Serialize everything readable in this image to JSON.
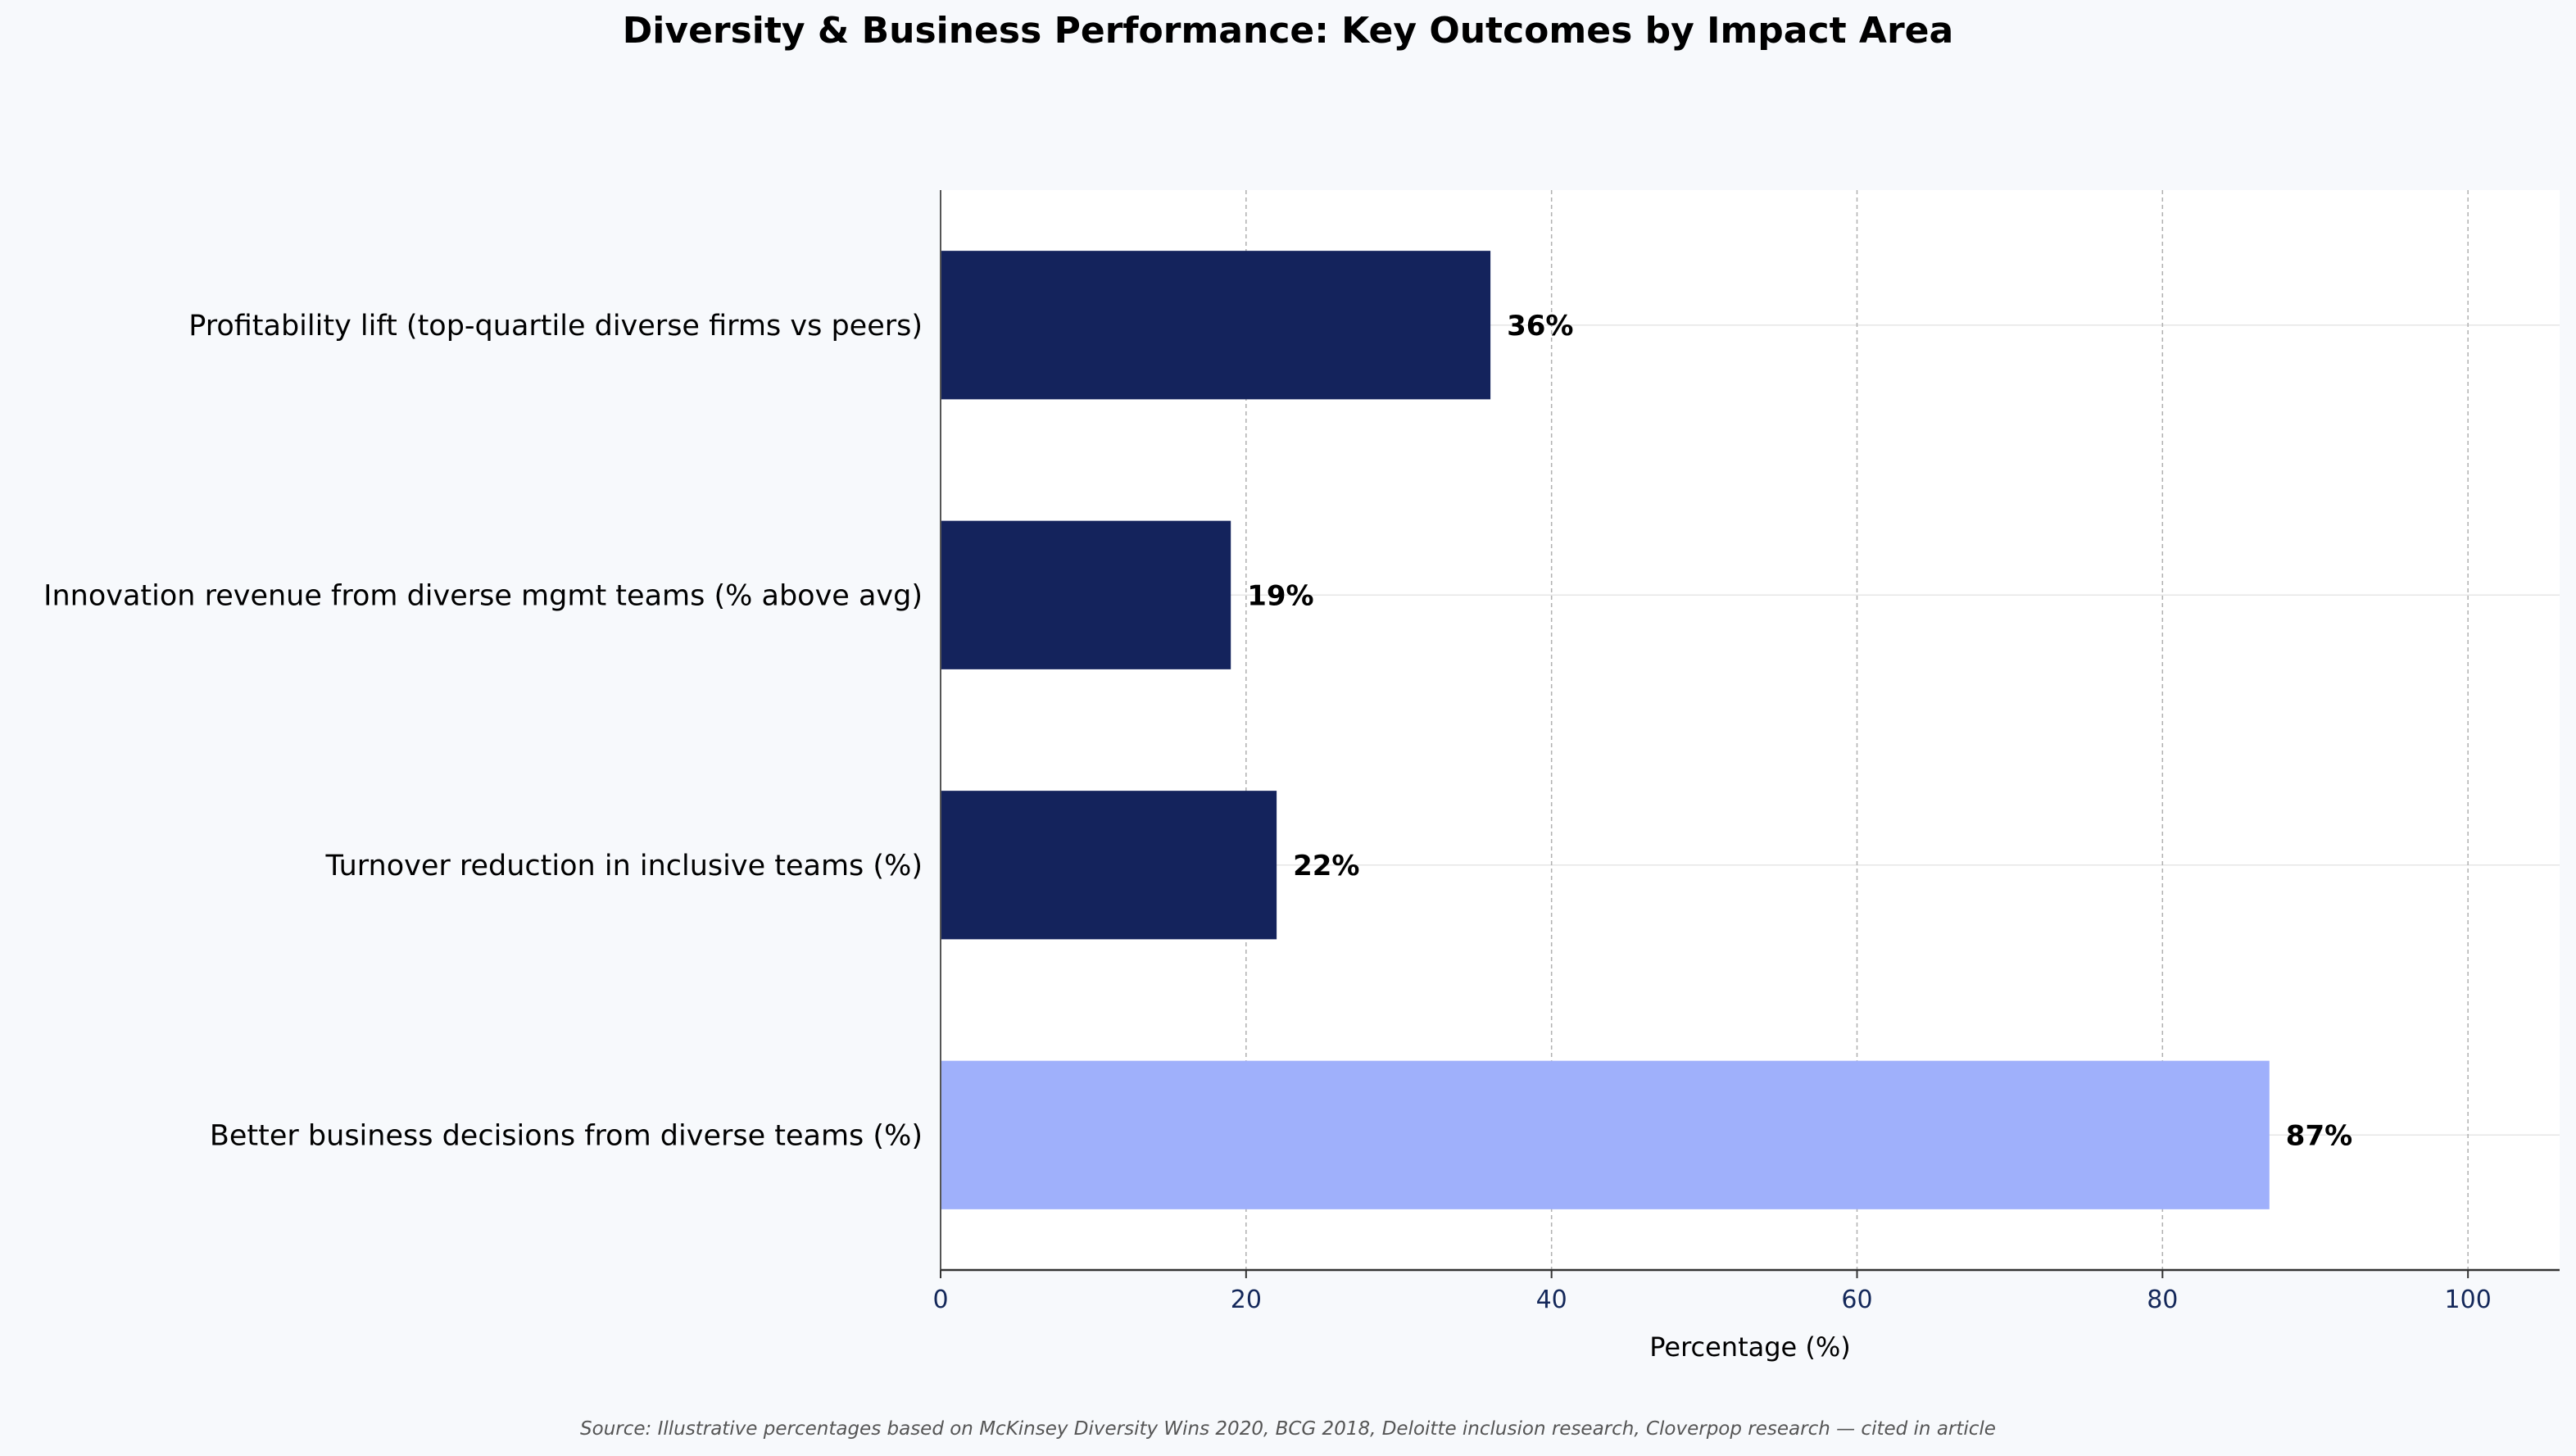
{
  "chart_data": {
    "type": "bar",
    "orientation": "horizontal",
    "title": "Diversity & Business Performance: Key Outcomes by Impact Area",
    "categories": [
      "Profitability lift (top-quartile diverse firms vs peers)",
      "Innovation revenue from diverse mgmt teams (% above avg)",
      "Turnover reduction in inclusive teams (%)",
      "Better business decisions from diverse teams (%)"
    ],
    "values": [
      36,
      19,
      22,
      87
    ],
    "data_labels": [
      "36%",
      "19%",
      "22%",
      "87%"
    ],
    "bar_colors": [
      "#14235c",
      "#14235c",
      "#14235c",
      "#9fb0fb"
    ],
    "xlabel": "Percentage (%)",
    "ylabel": "",
    "xlim": [
      0,
      106
    ],
    "xticks": [
      0,
      20,
      40,
      60,
      80,
      100
    ],
    "grid": "vertical dashed",
    "source": "Source: Illustrative percentages based on McKinsey Diversity Wins 2020, BCG 2018, Deloitte inclusion research, Cloverpop research — cited in article"
  },
  "colors": {
    "background": "#f7f9fc",
    "plot_background": "#ffffff",
    "bar_primary": "#14235c",
    "bar_highlight": "#9fb0fb"
  }
}
